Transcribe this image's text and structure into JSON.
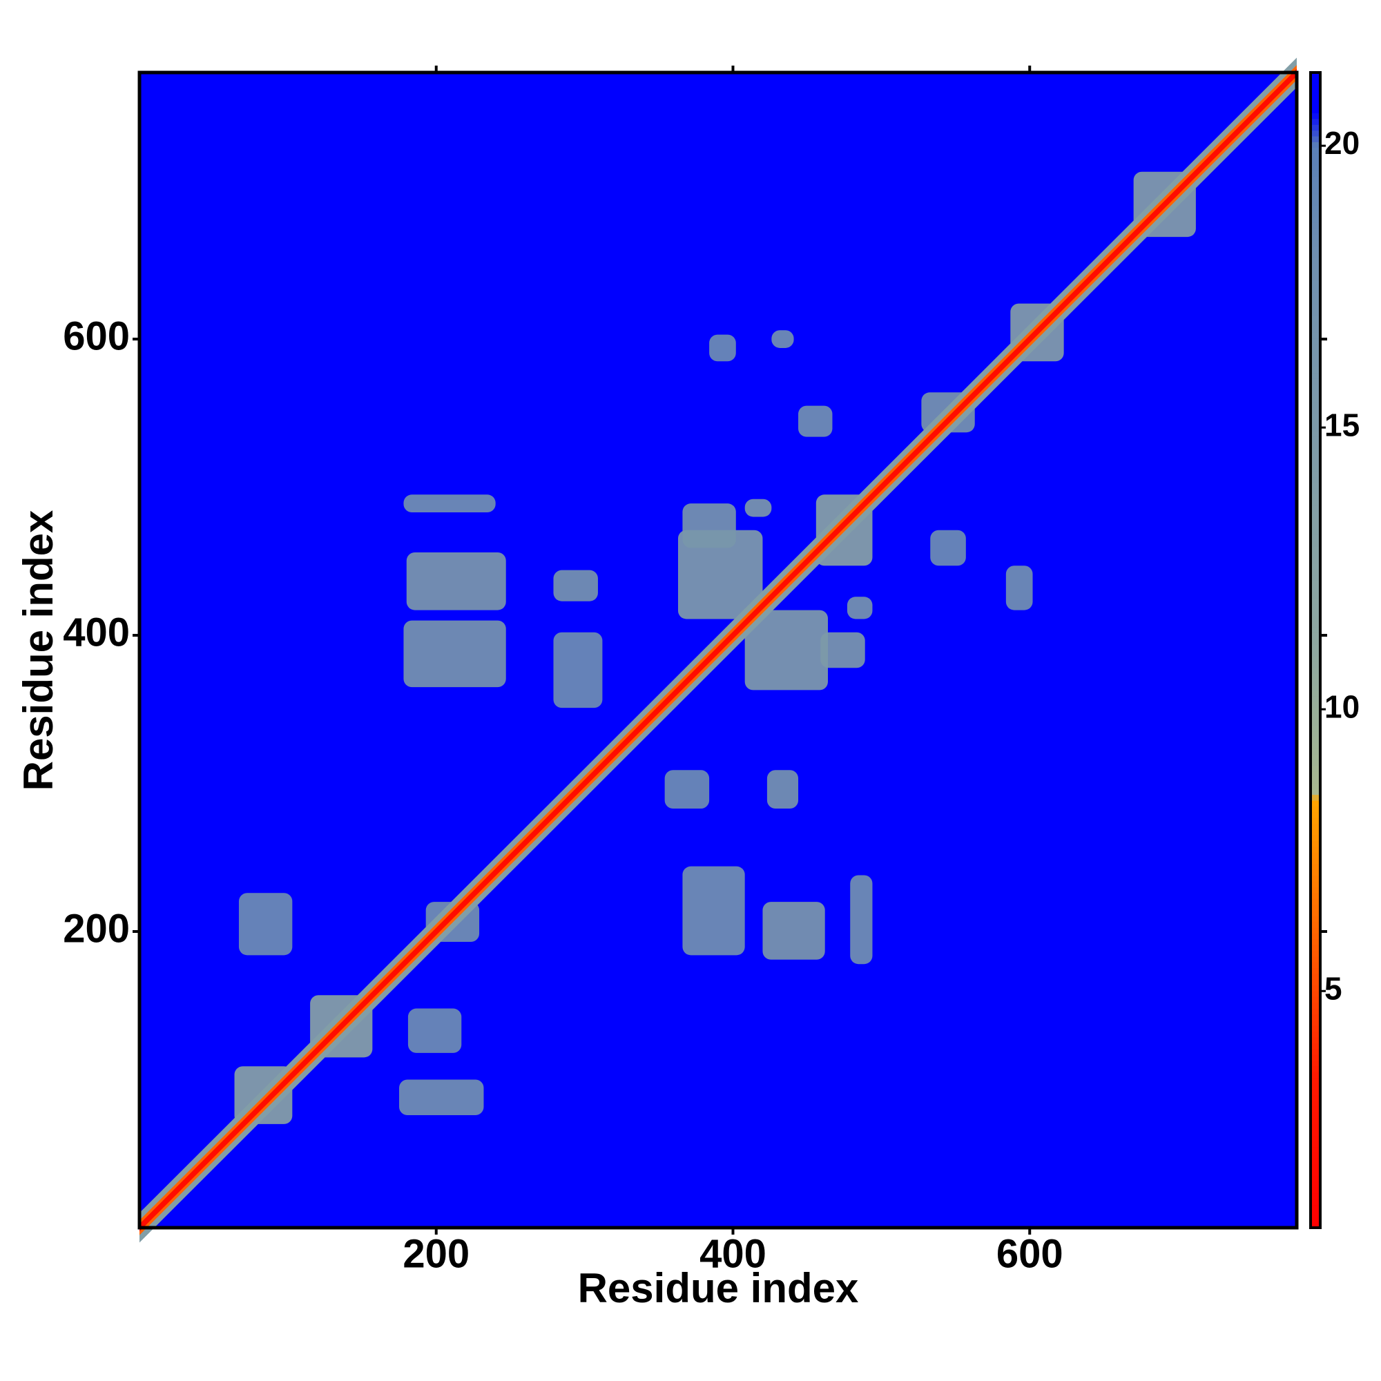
{
  "chart_data": {
    "type": "heatmap",
    "xlabel": "Residue index",
    "ylabel": "Residue index",
    "xlim": [
      0,
      780
    ],
    "ylim": [
      0,
      780
    ],
    "xticks": [
      200,
      400,
      600
    ],
    "yticks": [
      200,
      400,
      600
    ],
    "background": 21,
    "diagonal": [
      {
        "halfwidth": 10,
        "value": 14
      },
      {
        "halfwidth": 5,
        "value": 6
      },
      {
        "halfwidth": 2.5,
        "value": 2
      }
    ],
    "patches": [
      {
        "x": [
          180,
          247
        ],
        "y": [
          417,
          456
        ],
        "value": 15
      },
      {
        "x": [
          178,
          247
        ],
        "y": [
          365,
          410
        ],
        "value": 16
      },
      {
        "x": [
          178,
          240
        ],
        "y": [
          483,
          495
        ],
        "value": 17
      },
      {
        "x": [
          279,
          309
        ],
        "y": [
          423,
          444
        ],
        "value": 16
      },
      {
        "x": [
          279,
          312
        ],
        "y": [
          351,
          402
        ],
        "value": 18
      },
      {
        "x": [
          363,
          420
        ],
        "y": [
          411,
          471
        ],
        "value": 14
      },
      {
        "x": [
          408,
          464
        ],
        "y": [
          363,
          417
        ],
        "value": 14
      },
      {
        "x": [
          366,
          402
        ],
        "y": [
          459,
          489
        ],
        "value": 16
      },
      {
        "x": [
          408,
          426
        ],
        "y": [
          480,
          492
        ],
        "value": 15
      },
      {
        "x": [
          456,
          494
        ],
        "y": [
          447,
          495
        ],
        "value": 12
      },
      {
        "x": [
          459,
          489
        ],
        "y": [
          378,
          402
        ],
        "value": 15
      },
      {
        "x": [
          477,
          494
        ],
        "y": [
          411,
          426
        ],
        "value": 16
      },
      {
        "x": [
          420,
          462
        ],
        "y": [
          181,
          220
        ],
        "value": 15
      },
      {
        "x": [
          366,
          408
        ],
        "y": [
          184,
          244
        ],
        "value": 17
      },
      {
        "x": [
          479,
          494
        ],
        "y": [
          178,
          238
        ],
        "value": 17
      },
      {
        "x": [
          354,
          384
        ],
        "y": [
          283,
          309
        ],
        "value": 18
      },
      {
        "x": [
          423,
          444
        ],
        "y": [
          283,
          309
        ],
        "value": 16
      },
      {
        "x": [
          384,
          402
        ],
        "y": [
          585,
          603
        ],
        "value": 18
      },
      {
        "x": [
          426,
          441
        ],
        "y": [
          594,
          606
        ],
        "value": 17
      },
      {
        "x": [
          444,
          467
        ],
        "y": [
          534,
          555
        ],
        "value": 17
      },
      {
        "x": [
          533,
          557
        ],
        "y": [
          447,
          471
        ],
        "value": 18
      },
      {
        "x": [
          584,
          602
        ],
        "y": [
          417,
          447
        ],
        "value": 17
      },
      {
        "x": [
          587,
          623
        ],
        "y": [
          585,
          624
        ],
        "value": 13
      },
      {
        "x": [
          670,
          712
        ],
        "y": [
          669,
          713
        ],
        "value": 13
      },
      {
        "x": [
          527,
          563
        ],
        "y": [
          537,
          564
        ],
        "value": 16
      },
      {
        "x": [
          115,
          157
        ],
        "y": [
          115,
          157
        ],
        "value": 12
      },
      {
        "x": [
          64,
          103
        ],
        "y": [
          70,
          109
        ],
        "value": 12
      },
      {
        "x": [
          175,
          232
        ],
        "y": [
          76,
          100
        ],
        "value": 17
      },
      {
        "x": [
          67,
          103
        ],
        "y": [
          184,
          226
        ],
        "value": 18
      },
      {
        "x": [
          193,
          229
        ],
        "y": [
          193,
          220
        ],
        "value": 17
      },
      {
        "x": [
          181,
          217
        ],
        "y": [
          118,
          148
        ],
        "value": 18
      }
    ],
    "colorbar": {
      "lim": [
        0.8,
        21.3
      ],
      "ticks": [
        5,
        10,
        15,
        20
      ],
      "scale": [
        {
          "value": 0.8,
          "color": "#ff0000"
        },
        {
          "value": 3.5,
          "color": "#ff1a00"
        },
        {
          "value": 6.2,
          "color": "#ff6a00"
        },
        {
          "value": 8.4,
          "color": "#ffa500"
        },
        {
          "value": 8.5,
          "color": "#a8b890"
        },
        {
          "value": 11,
          "color": "#8fa8a0"
        },
        {
          "value": 18,
          "color": "#7090b0"
        },
        {
          "value": 20,
          "color": "#5a80b8"
        },
        {
          "value": 20.6,
          "color": "#0000ff"
        },
        {
          "value": 21.3,
          "color": "#0000ff"
        }
      ]
    }
  }
}
